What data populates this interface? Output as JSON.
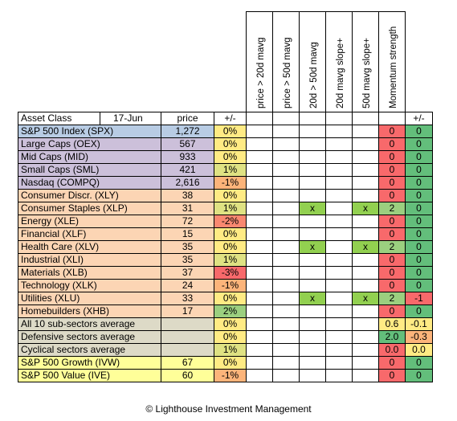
{
  "header": {
    "asset_class": "Asset Class",
    "date": "17-Jun",
    "price": "price",
    "change": "+/-",
    "indicators": [
      "price > 20d mavg",
      "price > 50d mavg",
      "20d > 50d mavg",
      "20d mavg slope+",
      "50d mavg slope+"
    ],
    "momentum": "Momentum strength",
    "momentum_change": "+/-"
  },
  "rows": [
    {
      "name": "S&P 500 Index (SPX)",
      "price": "1,272",
      "change": "0%",
      "ind": [
        "",
        "",
        "",
        "",
        ""
      ],
      "mom": "0",
      "mchg": "0",
      "group": "blue",
      "chg_color": "#ffeb84",
      "mom_color": "#f8696b",
      "mchg_color": "#63be7b"
    },
    {
      "name": "Large Caps (OEX)",
      "price": "567",
      "change": "0%",
      "ind": [
        "",
        "",
        "",
        "",
        ""
      ],
      "mom": "0",
      "mchg": "0",
      "group": "purple",
      "chg_color": "#ffeb84",
      "mom_color": "#f8696b",
      "mchg_color": "#63be7b"
    },
    {
      "name": "Mid Caps (MID)",
      "price": "933",
      "change": "0%",
      "ind": [
        "",
        "",
        "",
        "",
        ""
      ],
      "mom": "0",
      "mchg": "0",
      "group": "purple",
      "chg_color": "#ffeb84",
      "mom_color": "#f8696b",
      "mchg_color": "#63be7b"
    },
    {
      "name": "Small Caps (SML)",
      "price": "421",
      "change": "1%",
      "ind": [
        "",
        "",
        "",
        "",
        ""
      ],
      "mom": "0",
      "mchg": "0",
      "group": "purple",
      "chg_color": "#dfe283",
      "mom_color": "#f8696b",
      "mchg_color": "#63be7b"
    },
    {
      "name": "Nasdaq (COMPQ)",
      "price": "2,616",
      "change": "-1%",
      "ind": [
        "",
        "",
        "",
        "",
        ""
      ],
      "mom": "0",
      "mchg": "0",
      "group": "purple",
      "chg_color": "#fcb47a",
      "mom_color": "#f8696b",
      "mchg_color": "#63be7b"
    },
    {
      "name": "Consumer Discr. (XLY)",
      "price": "38",
      "change": "0%",
      "ind": [
        "",
        "",
        "",
        "",
        ""
      ],
      "mom": "0",
      "mchg": "0",
      "group": "peach",
      "chg_color": "#ffeb84",
      "mom_color": "#f8696b",
      "mchg_color": "#63be7b"
    },
    {
      "name": "Consumer Staples (XLP)",
      "price": "31",
      "change": "1%",
      "ind": [
        "",
        "",
        "x",
        "",
        "x"
      ],
      "mom": "2",
      "mchg": "0",
      "group": "peach",
      "chg_color": "#dfe283",
      "mom_color": "#9bcf7f",
      "mchg_color": "#63be7b"
    },
    {
      "name": "Energy (XLE)",
      "price": "72",
      "change": "-2%",
      "ind": [
        "",
        "",
        "",
        "",
        ""
      ],
      "mom": "0",
      "mchg": "0",
      "group": "peach",
      "chg_color": "#f98870",
      "mom_color": "#f8696b",
      "mchg_color": "#63be7b"
    },
    {
      "name": "Financial (XLF)",
      "price": "15",
      "change": "0%",
      "ind": [
        "",
        "",
        "",
        "",
        ""
      ],
      "mom": "0",
      "mchg": "0",
      "group": "peach",
      "chg_color": "#ffeb84",
      "mom_color": "#f8696b",
      "mchg_color": "#63be7b"
    },
    {
      "name": "Health Care (XLV)",
      "price": "35",
      "change": "0%",
      "ind": [
        "",
        "",
        "x",
        "",
        "x"
      ],
      "mom": "2",
      "mchg": "0",
      "group": "peach",
      "chg_color": "#ffeb84",
      "mom_color": "#9bcf7f",
      "mchg_color": "#63be7b"
    },
    {
      "name": "Industrial (XLI)",
      "price": "35",
      "change": "1%",
      "ind": [
        "",
        "",
        "",
        "",
        ""
      ],
      "mom": "0",
      "mchg": "0",
      "group": "peach",
      "chg_color": "#dfe283",
      "mom_color": "#f8696b",
      "mchg_color": "#63be7b"
    },
    {
      "name": "Materials (XLB)",
      "price": "37",
      "change": "-3%",
      "ind": [
        "",
        "",
        "",
        "",
        ""
      ],
      "mom": "0",
      "mchg": "0",
      "group": "peach",
      "chg_color": "#f8696b",
      "mom_color": "#f8696b",
      "mchg_color": "#63be7b"
    },
    {
      "name": "Technology (XLK)",
      "price": "24",
      "change": "-1%",
      "ind": [
        "",
        "",
        "",
        "",
        ""
      ],
      "mom": "0",
      "mchg": "0",
      "group": "peach",
      "chg_color": "#fcb47a",
      "mom_color": "#f8696b",
      "mchg_color": "#63be7b"
    },
    {
      "name": "Utilities (XLU)",
      "price": "33",
      "change": "0%",
      "ind": [
        "",
        "",
        "x",
        "",
        "x"
      ],
      "mom": "2",
      "mchg": "-1",
      "group": "peach",
      "chg_color": "#ffeb84",
      "mom_color": "#9bcf7f",
      "mchg_color": "#f8696b"
    },
    {
      "name": "Homebuilders (XHB)",
      "price": "17",
      "change": "2%",
      "ind": [
        "",
        "",
        "",
        "",
        ""
      ],
      "mom": "0",
      "mchg": "0",
      "group": "peach",
      "chg_color": "#9bcf7f",
      "mom_color": "#f8696b",
      "mchg_color": "#63be7b"
    },
    {
      "name": "All 10 sub-sectors average",
      "price": "",
      "change": "0%",
      "ind": [
        "",
        "",
        "",
        "",
        ""
      ],
      "mom": "0.6",
      "mchg": "-0.1",
      "group": "gray",
      "chg_color": "#ffeb84",
      "mom_color": "#ffeb84",
      "mchg_color": "#ffeb84"
    },
    {
      "name": "Defensive sectors average",
      "price": "",
      "change": "0%",
      "ind": [
        "",
        "",
        "",
        "",
        ""
      ],
      "mom": "2.0",
      "mchg": "-0.3",
      "group": "gray",
      "chg_color": "#ffeb84",
      "mom_color": "#63be7b",
      "mchg_color": "#fcb47a"
    },
    {
      "name": "Cyclical sectors average",
      "price": "",
      "change": "1%",
      "ind": [
        "",
        "",
        "",
        "",
        ""
      ],
      "mom": "0.0",
      "mchg": "0.0",
      "group": "gray",
      "chg_color": "#dfe283",
      "mom_color": "#f8696b",
      "mchg_color": "#ffeb84"
    },
    {
      "name": "S&P 500 Growth (IVW)",
      "price": "67",
      "change": "0%",
      "ind": [
        "",
        "",
        "",
        "",
        ""
      ],
      "mom": "0",
      "mchg": "0",
      "group": "yellow",
      "chg_color": "#ffeb84",
      "mom_color": "#f8696b",
      "mchg_color": "#63be7b"
    },
    {
      "name": "S&P 500 Value (IVE)",
      "price": "60",
      "change": "-1%",
      "ind": [
        "",
        "",
        "",
        "",
        ""
      ],
      "mom": "0",
      "mchg": "0",
      "group": "yellow",
      "chg_color": "#fcb47a",
      "mom_color": "#f8696b",
      "mchg_color": "#63be7b"
    }
  ],
  "x_color": "#92d050",
  "footer": "© Lighthouse Investment Management"
}
